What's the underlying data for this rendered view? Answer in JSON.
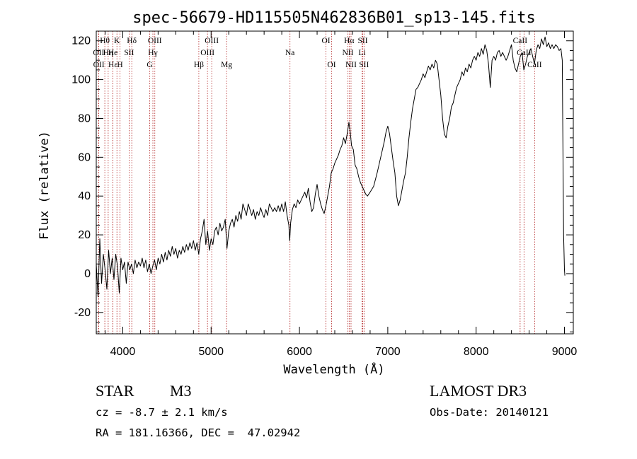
{
  "chart_data": {
    "type": "line",
    "title": "spec-56679-HD115505N462836B01_sp13-145.fits",
    "xlabel": "Wavelength (Å)",
    "ylabel": "Flux (relative)",
    "xlim": [
      3700,
      9100
    ],
    "ylim": [
      -31,
      125
    ],
    "xticks": [
      4000,
      5000,
      6000,
      7000,
      8000,
      9000
    ],
    "yticks": [
      -20,
      0,
      20,
      40,
      60,
      80,
      100,
      120
    ],
    "grid": false,
    "series": [
      {
        "name": "spectrum",
        "points": [
          [
            3700,
            5
          ],
          [
            3720,
            -12
          ],
          [
            3740,
            18
          ],
          [
            3760,
            -5
          ],
          [
            3780,
            10
          ],
          [
            3800,
            2
          ],
          [
            3820,
            -8
          ],
          [
            3840,
            12
          ],
          [
            3860,
            0
          ],
          [
            3880,
            8
          ],
          [
            3900,
            -3
          ],
          [
            3920,
            10
          ],
          [
            3940,
            4
          ],
          [
            3960,
            -10
          ],
          [
            3980,
            8
          ],
          [
            4000,
            2
          ],
          [
            4020,
            6
          ],
          [
            4040,
            -5
          ],
          [
            4060,
            6
          ],
          [
            4080,
            2
          ],
          [
            4100,
            5
          ],
          [
            4120,
            0
          ],
          [
            4140,
            7
          ],
          [
            4160,
            3
          ],
          [
            4180,
            6
          ],
          [
            4200,
            4
          ],
          [
            4220,
            8
          ],
          [
            4240,
            3
          ],
          [
            4260,
            7
          ],
          [
            4280,
            1
          ],
          [
            4300,
            5
          ],
          [
            4320,
            0
          ],
          [
            4340,
            4
          ],
          [
            4360,
            7
          ],
          [
            4380,
            2
          ],
          [
            4400,
            8
          ],
          [
            4420,
            5
          ],
          [
            4440,
            10
          ],
          [
            4460,
            6
          ],
          [
            4480,
            11
          ],
          [
            4500,
            7
          ],
          [
            4520,
            12
          ],
          [
            4540,
            9
          ],
          [
            4560,
            14
          ],
          [
            4580,
            10
          ],
          [
            4600,
            13
          ],
          [
            4620,
            8
          ],
          [
            4640,
            12
          ],
          [
            4660,
            10
          ],
          [
            4680,
            14
          ],
          [
            4700,
            11
          ],
          [
            4720,
            15
          ],
          [
            4740,
            12
          ],
          [
            4760,
            16
          ],
          [
            4780,
            13
          ],
          [
            4800,
            17
          ],
          [
            4820,
            12
          ],
          [
            4840,
            16
          ],
          [
            4860,
            10
          ],
          [
            4880,
            18
          ],
          [
            4900,
            22
          ],
          [
            4920,
            28
          ],
          [
            4940,
            15
          ],
          [
            4960,
            22
          ],
          [
            4980,
            12
          ],
          [
            5000,
            18
          ],
          [
            5020,
            15
          ],
          [
            5040,
            22
          ],
          [
            5060,
            24
          ],
          [
            5080,
            20
          ],
          [
            5100,
            26
          ],
          [
            5120,
            22
          ],
          [
            5140,
            24
          ],
          [
            5160,
            28
          ],
          [
            5180,
            13
          ],
          [
            5200,
            22
          ],
          [
            5220,
            26
          ],
          [
            5240,
            28
          ],
          [
            5260,
            24
          ],
          [
            5280,
            30
          ],
          [
            5300,
            27
          ],
          [
            5320,
            32
          ],
          [
            5340,
            28
          ],
          [
            5360,
            36
          ],
          [
            5380,
            33
          ],
          [
            5400,
            30
          ],
          [
            5420,
            36
          ],
          [
            5440,
            33
          ],
          [
            5460,
            30
          ],
          [
            5480,
            33
          ],
          [
            5500,
            28
          ],
          [
            5520,
            32
          ],
          [
            5540,
            30
          ],
          [
            5560,
            34
          ],
          [
            5580,
            31
          ],
          [
            5600,
            29
          ],
          [
            5620,
            33
          ],
          [
            5640,
            30
          ],
          [
            5660,
            36
          ],
          [
            5680,
            34
          ],
          [
            5700,
            32
          ],
          [
            5720,
            34
          ],
          [
            5740,
            32
          ],
          [
            5760,
            35
          ],
          [
            5780,
            32
          ],
          [
            5800,
            36
          ],
          [
            5820,
            32
          ],
          [
            5840,
            37
          ],
          [
            5860,
            30
          ],
          [
            5880,
            25
          ],
          [
            5890,
            17
          ],
          [
            5900,
            26
          ],
          [
            5920,
            33
          ],
          [
            5940,
            36
          ],
          [
            5960,
            34
          ],
          [
            5980,
            38
          ],
          [
            6000,
            36
          ],
          [
            6020,
            38
          ],
          [
            6040,
            40
          ],
          [
            6060,
            42
          ],
          [
            6080,
            39
          ],
          [
            6100,
            44
          ],
          [
            6120,
            37
          ],
          [
            6140,
            32
          ],
          [
            6160,
            34
          ],
          [
            6180,
            41
          ],
          [
            6200,
            46
          ],
          [
            6220,
            40
          ],
          [
            6240,
            36
          ],
          [
            6260,
            33
          ],
          [
            6280,
            31
          ],
          [
            6300,
            35
          ],
          [
            6320,
            40
          ],
          [
            6340,
            45
          ],
          [
            6360,
            52
          ],
          [
            6380,
            54
          ],
          [
            6400,
            57
          ],
          [
            6420,
            59
          ],
          [
            6440,
            61
          ],
          [
            6460,
            64
          ],
          [
            6480,
            66
          ],
          [
            6500,
            70
          ],
          [
            6520,
            67
          ],
          [
            6540,
            72
          ],
          [
            6560,
            78
          ],
          [
            6575,
            73
          ],
          [
            6590,
            66
          ],
          [
            6610,
            64
          ],
          [
            6630,
            56
          ],
          [
            6650,
            54
          ],
          [
            6670,
            50
          ],
          [
            6690,
            47
          ],
          [
            6710,
            45
          ],
          [
            6730,
            43
          ],
          [
            6750,
            41
          ],
          [
            6770,
            40
          ],
          [
            6800,
            42
          ],
          [
            6840,
            45
          ],
          [
            6880,
            52
          ],
          [
            6920,
            60
          ],
          [
            6960,
            68
          ],
          [
            6980,
            73
          ],
          [
            7000,
            76
          ],
          [
            7020,
            72
          ],
          [
            7040,
            65
          ],
          [
            7060,
            58
          ],
          [
            7080,
            52
          ],
          [
            7100,
            40
          ],
          [
            7120,
            35
          ],
          [
            7140,
            38
          ],
          [
            7160,
            43
          ],
          [
            7180,
            48
          ],
          [
            7200,
            52
          ],
          [
            7220,
            60
          ],
          [
            7240,
            70
          ],
          [
            7260,
            78
          ],
          [
            7280,
            85
          ],
          [
            7300,
            90
          ],
          [
            7320,
            95
          ],
          [
            7340,
            96
          ],
          [
            7360,
            98
          ],
          [
            7380,
            100
          ],
          [
            7400,
            103
          ],
          [
            7420,
            101
          ],
          [
            7440,
            104
          ],
          [
            7460,
            107
          ],
          [
            7480,
            105
          ],
          [
            7500,
            108
          ],
          [
            7520,
            106
          ],
          [
            7540,
            110
          ],
          [
            7560,
            108
          ],
          [
            7580,
            100
          ],
          [
            7600,
            92
          ],
          [
            7620,
            80
          ],
          [
            7640,
            72
          ],
          [
            7660,
            70
          ],
          [
            7680,
            76
          ],
          [
            7700,
            80
          ],
          [
            7720,
            86
          ],
          [
            7740,
            88
          ],
          [
            7760,
            92
          ],
          [
            7780,
            96
          ],
          [
            7800,
            98
          ],
          [
            7820,
            100
          ],
          [
            7840,
            104
          ],
          [
            7860,
            102
          ],
          [
            7880,
            106
          ],
          [
            7900,
            104
          ],
          [
            7920,
            108
          ],
          [
            7940,
            106
          ],
          [
            7960,
            110
          ],
          [
            7980,
            112
          ],
          [
            8000,
            110
          ],
          [
            8020,
            114
          ],
          [
            8040,
            112
          ],
          [
            8060,
            116
          ],
          [
            8080,
            113
          ],
          [
            8100,
            118
          ],
          [
            8120,
            115
          ],
          [
            8140,
            108
          ],
          [
            8160,
            96
          ],
          [
            8180,
            110
          ],
          [
            8200,
            112
          ],
          [
            8220,
            110
          ],
          [
            8240,
            114
          ],
          [
            8260,
            115
          ],
          [
            8280,
            112
          ],
          [
            8300,
            114
          ],
          [
            8320,
            112
          ],
          [
            8340,
            110
          ],
          [
            8360,
            112
          ],
          [
            8380,
            115
          ],
          [
            8400,
            118
          ],
          [
            8420,
            110
          ],
          [
            8440,
            106
          ],
          [
            8460,
            104
          ],
          [
            8480,
            108
          ],
          [
            8500,
            112
          ],
          [
            8520,
            114
          ],
          [
            8540,
            105
          ],
          [
            8560,
            108
          ],
          [
            8580,
            112
          ],
          [
            8600,
            114
          ],
          [
            8620,
            116
          ],
          [
            8640,
            112
          ],
          [
            8660,
            108
          ],
          [
            8680,
            115
          ],
          [
            8700,
            118
          ],
          [
            8720,
            116
          ],
          [
            8740,
            121
          ],
          [
            8760,
            118
          ],
          [
            8780,
            122
          ],
          [
            8800,
            117
          ],
          [
            8820,
            119
          ],
          [
            8840,
            116
          ],
          [
            8860,
            118
          ],
          [
            8880,
            116
          ],
          [
            8900,
            118
          ],
          [
            8920,
            117
          ],
          [
            8940,
            115
          ],
          [
            8960,
            116
          ],
          [
            8975,
            110
          ],
          [
            8990,
            20
          ],
          [
            9000,
            2
          ],
          [
            9005,
            -1
          ]
        ]
      }
    ],
    "lines": [
      {
        "label": "Hθ",
        "x": 3797,
        "row": 0
      },
      {
        "label": "OII",
        "x": 3727,
        "row": 1
      },
      {
        "label": "OII",
        "x": 3729,
        "row": 2
      },
      {
        "label": "Hη",
        "x": 3835,
        "row": 1
      },
      {
        "label": "Hε",
        "x": 3889,
        "row": 2
      },
      {
        "label": "He",
        "x": 3889,
        "row": 1
      },
      {
        "label": "K",
        "x": 3934,
        "row": 0
      },
      {
        "label": "H",
        "x": 3969,
        "row": 2
      },
      {
        "label": "SII",
        "x": 4072,
        "row": 1
      },
      {
        "label": "Hδ",
        "x": 4102,
        "row": 0
      },
      {
        "label": "OIII",
        "x": 4363,
        "row": 0
      },
      {
        "label": "Hγ",
        "x": 4341,
        "row": 1
      },
      {
        "label": "G",
        "x": 4305,
        "row": 2
      },
      {
        "label": "Hβ",
        "x": 4861,
        "row": 2
      },
      {
        "label": "OIII",
        "x": 4959,
        "row": 1
      },
      {
        "label": "OIII",
        "x": 5007,
        "row": 0
      },
      {
        "label": "Mg",
        "x": 5175,
        "row": 2
      },
      {
        "label": "Na",
        "x": 5893,
        "row": 1
      },
      {
        "label": "OI",
        "x": 6300,
        "row": 0
      },
      {
        "label": "OI",
        "x": 6364,
        "row": 2
      },
      {
        "label": "Hα",
        "x": 6563,
        "row": 0
      },
      {
        "label": "NII",
        "x": 6548,
        "row": 1
      },
      {
        "label": "NII",
        "x": 6584,
        "row": 2
      },
      {
        "label": "SII",
        "x": 6717,
        "row": 0
      },
      {
        "label": "Li",
        "x": 6708,
        "row": 1
      },
      {
        "label": "SII",
        "x": 6731,
        "row": 2
      },
      {
        "label": "CaII",
        "x": 8498,
        "row": 0
      },
      {
        "label": "CaII",
        "x": 8542,
        "row": 1
      },
      {
        "label": "CaII",
        "x": 8662,
        "row": 2
      }
    ]
  },
  "info": {
    "class": "STAR",
    "subclass": "M3",
    "survey": "LAMOST DR3",
    "redshift": "cz = -8.7 ± 2.1 km/s",
    "obs_date": "Obs-Date: 20140121",
    "coords": "RA = 181.16366, DEC =  47.02942"
  },
  "colors": {
    "line_markers": "#b22222",
    "spectrum": "#000000"
  }
}
